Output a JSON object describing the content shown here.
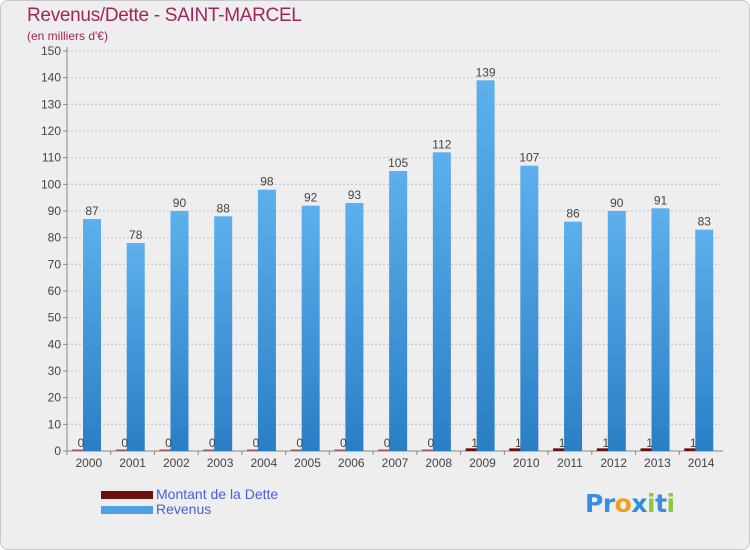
{
  "title": "Revenus/Dette - SAINT-MARCEL",
  "subtitle": "(en milliers d'€)",
  "logo": {
    "p": "P",
    "r": "r",
    "o": "o",
    "x": "x",
    "i1": "i",
    "t": "t",
    "i2": "i"
  },
  "colors": {
    "dette": "#6b0f0f",
    "revenus": "#4ba3e3",
    "revenus_dark": "#2a7ec5",
    "grid": "#c4c4c4",
    "text": "#444444",
    "title": "#a0265c",
    "legend_text": "#4a60d8"
  },
  "legend": {
    "dette": "Montant de la Dette",
    "revenus": "Revenus"
  },
  "chart_data": {
    "type": "bar",
    "title": "Revenus/Dette - SAINT-MARCEL",
    "ylabel": "(en milliers d'€)",
    "xlabel": "",
    "categories": [
      "2000",
      "2001",
      "2002",
      "2003",
      "2004",
      "2005",
      "2006",
      "2007",
      "2008",
      "2009",
      "2010",
      "2011",
      "2012",
      "2013",
      "2014"
    ],
    "series": [
      {
        "name": "Montant de la Dette",
        "values": [
          0,
          0,
          0,
          0,
          0,
          0,
          0,
          0,
          0,
          1,
          1,
          1,
          1,
          1,
          1
        ]
      },
      {
        "name": "Revenus",
        "values": [
          87,
          78,
          90,
          88,
          98,
          92,
          93,
          105,
          112,
          139,
          107,
          86,
          90,
          91,
          83
        ]
      }
    ],
    "ylim": [
      0,
      150
    ],
    "yticks": [
      0,
      10,
      20,
      30,
      40,
      50,
      60,
      70,
      80,
      90,
      100,
      110,
      120,
      130,
      140,
      150
    ],
    "grid": true
  }
}
